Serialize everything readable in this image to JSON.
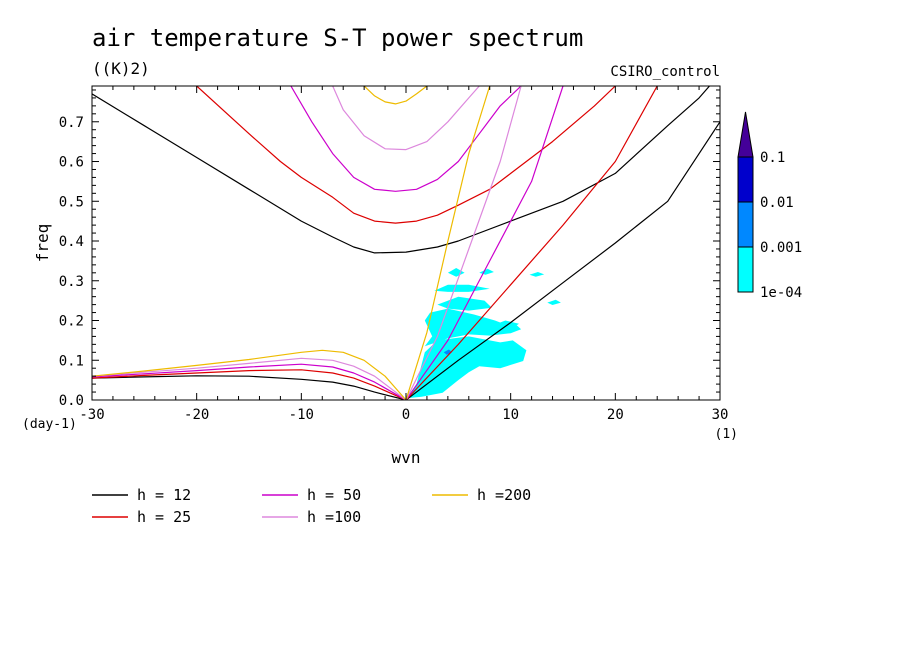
{
  "chart_data": {
    "type": "line",
    "title": "air temperature S-T power spectrum",
    "subtitle": "((K)2)",
    "run_label": "CSIRO_control",
    "xlabel": "wvn",
    "ylabel": "freq",
    "x_unit": "(1)",
    "y_unit": "(day-1)",
    "xlim": [
      -30,
      30
    ],
    "ylim": [
      0,
      0.79
    ],
    "x_ticks": [
      -30,
      -20,
      -10,
      0,
      10,
      20,
      30
    ],
    "x_tick_labels": [
      "-30",
      "-20",
      "-10",
      "0",
      "10",
      "20",
      "30"
    ],
    "y_ticks": [
      0,
      0.1,
      0.2,
      0.3,
      0.4,
      0.5,
      0.6,
      0.7
    ],
    "y_tick_labels": [
      "0.0",
      "0.1",
      "0.2",
      "0.3",
      "0.4",
      "0.5",
      "0.6",
      "0.7"
    ],
    "grid": false,
    "legend_position": "bottom",
    "series": [
      {
        "name": "h = 12",
        "color": "#000000",
        "curves": [
          {
            "kind": "inertia-gravity",
            "points": [
              [
                -30,
                0.77
              ],
              [
                -25,
                0.69
              ],
              [
                -20,
                0.61
              ],
              [
                -15,
                0.53
              ],
              [
                -10,
                0.45
              ],
              [
                -7,
                0.41
              ],
              [
                -5,
                0.385
              ],
              [
                -3,
                0.37
              ],
              [
                0,
                0.372
              ],
              [
                3,
                0.385
              ],
              [
                5,
                0.4
              ],
              [
                10,
                0.45
              ],
              [
                15,
                0.5
              ],
              [
                20,
                0.57
              ],
              [
                25,
                0.69
              ],
              [
                28,
                0.76
              ],
              [
                29,
                0.79
              ]
            ]
          },
          {
            "kind": "kelvin",
            "points": [
              [
                0,
                0
              ],
              [
                5,
                0.1
              ],
              [
                10,
                0.195
              ],
              [
                15,
                0.295
              ],
              [
                20,
                0.395
              ],
              [
                25,
                0.5
              ],
              [
                30,
                0.7
              ]
            ]
          },
          {
            "kind": "rossby",
            "points": [
              [
                -30,
                0.055
              ],
              [
                -25,
                0.058
              ],
              [
                -20,
                0.061
              ],
              [
                -15,
                0.06
              ],
              [
                -10,
                0.052
              ],
              [
                -7,
                0.045
              ],
              [
                -5,
                0.035
              ],
              [
                -3,
                0.02
              ],
              [
                0,
                0
              ]
            ]
          }
        ]
      },
      {
        "name": "h = 25",
        "color": "#dd0000",
        "curves": [
          {
            "kind": "inertia-gravity",
            "points": [
              [
                -20,
                0.79
              ],
              [
                -15,
                0.67
              ],
              [
                -12,
                0.6
              ],
              [
                -10,
                0.56
              ],
              [
                -7,
                0.51
              ],
              [
                -5,
                0.47
              ],
              [
                -3,
                0.45
              ],
              [
                -1,
                0.445
              ],
              [
                1,
                0.45
              ],
              [
                3,
                0.465
              ],
              [
                5,
                0.49
              ],
              [
                8,
                0.53
              ],
              [
                10,
                0.57
              ],
              [
                14,
                0.65
              ],
              [
                18,
                0.74
              ],
              [
                20,
                0.79
              ]
            ]
          },
          {
            "kind": "kelvin",
            "points": [
              [
                0,
                0
              ],
              [
                5,
                0.14
              ],
              [
                10,
                0.29
              ],
              [
                15,
                0.44
              ],
              [
                20,
                0.6
              ],
              [
                24,
                0.79
              ]
            ]
          },
          {
            "kind": "rossby",
            "points": [
              [
                -30,
                0.055
              ],
              [
                -25,
                0.062
              ],
              [
                -20,
                0.068
              ],
              [
                -15,
                0.074
              ],
              [
                -10,
                0.076
              ],
              [
                -7,
                0.068
              ],
              [
                -5,
                0.055
              ],
              [
                -3,
                0.035
              ],
              [
                0,
                0
              ]
            ]
          }
        ]
      },
      {
        "name": "h = 50",
        "color": "#cc00cc",
        "curves": [
          {
            "kind": "inertia-gravity",
            "points": [
              [
                -11,
                0.79
              ],
              [
                -9,
                0.7
              ],
              [
                -7,
                0.62
              ],
              [
                -5,
                0.56
              ],
              [
                -3,
                0.53
              ],
              [
                -1,
                0.525
              ],
              [
                1,
                0.53
              ],
              [
                3,
                0.555
              ],
              [
                5,
                0.6
              ],
              [
                7,
                0.67
              ],
              [
                9,
                0.74
              ],
              [
                11,
                0.79
              ]
            ]
          },
          {
            "kind": "kelvin",
            "points": [
              [
                0,
                0
              ],
              [
                4,
                0.15
              ],
              [
                8,
                0.35
              ],
              [
                12,
                0.55
              ],
              [
                15,
                0.79
              ]
            ]
          },
          {
            "kind": "rossby",
            "points": [
              [
                -30,
                0.058
              ],
              [
                -25,
                0.066
              ],
              [
                -20,
                0.074
              ],
              [
                -15,
                0.083
              ],
              [
                -10,
                0.09
              ],
              [
                -7,
                0.083
              ],
              [
                -5,
                0.068
              ],
              [
                -3,
                0.045
              ],
              [
                0,
                0
              ]
            ]
          }
        ]
      },
      {
        "name": "h =100",
        "color": "#dd88dd",
        "curves": [
          {
            "kind": "inertia-gravity",
            "points": [
              [
                -7,
                0.79
              ],
              [
                -6,
                0.73
              ],
              [
                -4,
                0.665
              ],
              [
                -2,
                0.632
              ],
              [
                0,
                0.63
              ],
              [
                2,
                0.65
              ],
              [
                4,
                0.7
              ],
              [
                6,
                0.76
              ],
              [
                7,
                0.79
              ]
            ]
          },
          {
            "kind": "kelvin",
            "points": [
              [
                0,
                0
              ],
              [
                3,
                0.16
              ],
              [
                6,
                0.38
              ],
              [
                9,
                0.6
              ],
              [
                11,
                0.79
              ]
            ]
          },
          {
            "kind": "rossby",
            "points": [
              [
                -30,
                0.06
              ],
              [
                -25,
                0.07
              ],
              [
                -20,
                0.08
              ],
              [
                -15,
                0.092
              ],
              [
                -10,
                0.105
              ],
              [
                -7,
                0.1
              ],
              [
                -5,
                0.085
              ],
              [
                -3,
                0.06
              ],
              [
                0,
                0
              ]
            ]
          }
        ]
      },
      {
        "name": "h =200",
        "color": "#eebb00",
        "curves": [
          {
            "kind": "inertia-gravity",
            "points": [
              [
                -4,
                0.79
              ],
              [
                -3,
                0.765
              ],
              [
                -2,
                0.75
              ],
              [
                -1,
                0.745
              ],
              [
                0,
                0.752
              ],
              [
                1,
                0.77
              ],
              [
                2,
                0.79
              ]
            ]
          },
          {
            "kind": "kelvin",
            "points": [
              [
                0,
                0
              ],
              [
                2,
                0.17
              ],
              [
                4,
                0.4
              ],
              [
                6,
                0.62
              ],
              [
                8,
                0.79
              ]
            ]
          },
          {
            "kind": "rossby",
            "points": [
              [
                -30,
                0.06
              ],
              [
                -25,
                0.073
              ],
              [
                -20,
                0.087
              ],
              [
                -15,
                0.102
              ],
              [
                -10,
                0.12
              ],
              [
                -8,
                0.125
              ],
              [
                -6,
                0.12
              ],
              [
                -4,
                0.1
              ],
              [
                -2,
                0.06
              ],
              [
                0,
                0
              ]
            ]
          }
        ]
      }
    ],
    "spectrum_patches": [
      {
        "level": "1e-04",
        "points": [
          [
            0.3,
            0.005
          ],
          [
            1,
            0.04
          ],
          [
            1.8,
            0.12
          ],
          [
            3,
            0.15
          ],
          [
            6,
            0.16
          ],
          [
            9,
            0.145
          ],
          [
            10.2,
            0.15
          ],
          [
            11.5,
            0.125
          ],
          [
            11.2,
            0.098
          ],
          [
            9,
            0.08
          ],
          [
            7,
            0.085
          ],
          [
            6,
            0.07
          ],
          [
            5,
            0.05
          ],
          [
            3.5,
            0.018
          ],
          [
            1.5,
            0.008
          ]
        ]
      },
      {
        "level": "1e-04",
        "points": [
          [
            1.8,
            0.135
          ],
          [
            2.5,
            0.16
          ],
          [
            1.8,
            0.2
          ],
          [
            2.3,
            0.22
          ],
          [
            4,
            0.23
          ],
          [
            6.5,
            0.215
          ],
          [
            8.5,
            0.2
          ],
          [
            9.5,
            0.19
          ],
          [
            10.5,
            0.19
          ],
          [
            11,
            0.178
          ],
          [
            10,
            0.168
          ],
          [
            8,
            0.162
          ],
          [
            6,
            0.165
          ],
          [
            4,
            0.155
          ]
        ]
      },
      {
        "level": "1e-04",
        "points": [
          [
            3,
            0.24
          ],
          [
            5,
            0.26
          ],
          [
            7.5,
            0.25
          ],
          [
            8.2,
            0.232
          ],
          [
            6,
            0.225
          ],
          [
            4,
            0.23
          ]
        ]
      },
      {
        "level": "1e-04",
        "points": [
          [
            2.7,
            0.275
          ],
          [
            4,
            0.29
          ],
          [
            6,
            0.29
          ],
          [
            8,
            0.28
          ],
          [
            6,
            0.272
          ],
          [
            4,
            0.272
          ]
        ]
      },
      {
        "level": "1e-04",
        "points": [
          [
            4,
            0.32
          ],
          [
            4.8,
            0.332
          ],
          [
            5.6,
            0.32
          ],
          [
            4.8,
            0.31
          ]
        ]
      },
      {
        "level": "1e-04",
        "points": [
          [
            8,
            0.185
          ],
          [
            9.5,
            0.2
          ],
          [
            10.8,
            0.192
          ],
          [
            10,
            0.178
          ],
          [
            8.5,
            0.18
          ]
        ]
      },
      {
        "level": "1e-04",
        "points": [
          [
            7,
            0.32
          ],
          [
            7.8,
            0.33
          ],
          [
            8.4,
            0.322
          ],
          [
            7.6,
            0.315
          ]
        ]
      },
      {
        "level": "1e-04",
        "points": [
          [
            13.5,
            0.245
          ],
          [
            14.3,
            0.252
          ],
          [
            14.8,
            0.245
          ],
          [
            14,
            0.239
          ]
        ]
      },
      {
        "level": "1e-04",
        "points": [
          [
            11.8,
            0.315
          ],
          [
            12.6,
            0.322
          ],
          [
            13.2,
            0.316
          ],
          [
            12.4,
            0.31
          ]
        ]
      },
      {
        "level": "0.001",
        "points": [
          [
            3.6,
            0.12
          ],
          [
            4.1,
            0.127
          ],
          [
            4.4,
            0.12
          ],
          [
            3.9,
            0.114
          ]
        ]
      }
    ],
    "colorbar": {
      "levels": [
        "1e-04",
        "0.001",
        "0.01",
        "0.1"
      ],
      "colors": [
        "#00ffff",
        "#0088ff",
        "#0000cc",
        "#440099"
      ]
    }
  }
}
